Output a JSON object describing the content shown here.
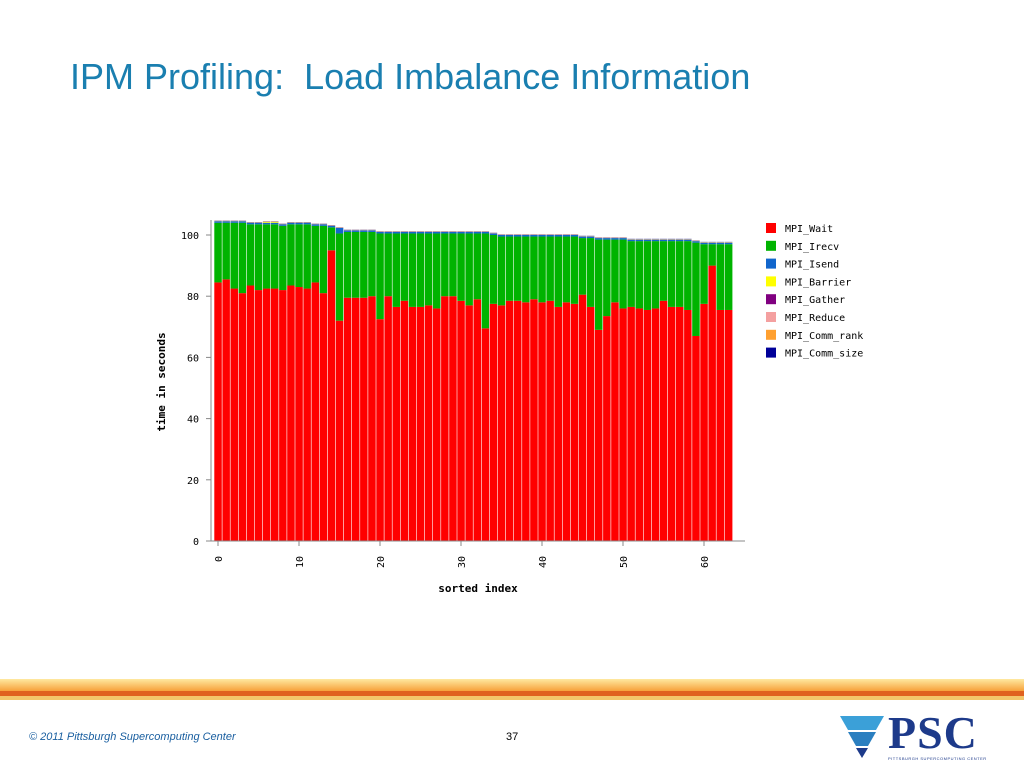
{
  "slide": {
    "title": "IPM Profiling:  Load Imbalance Information",
    "footer_copyright": "© 2011 Pittsburgh Supercomputing Center",
    "page_number": "37",
    "logo_text": "PSC",
    "logo_subtext": "PITTSBURGH SUPERCOMPUTING CENTER"
  },
  "chart_data": {
    "type": "bar",
    "stacked": true,
    "xlabel": "sorted index",
    "ylabel": "time in seconds",
    "ylim": [
      0,
      105
    ],
    "yticks": [
      0,
      20,
      40,
      60,
      80,
      100
    ],
    "xticks": [
      0,
      10,
      20,
      30,
      40,
      50,
      60
    ],
    "grid": false,
    "legend_position": "right",
    "legend": [
      {
        "name": "MPI_Wait",
        "color": "#ff0000"
      },
      {
        "name": "MPI_Irecv",
        "color": "#00b300"
      },
      {
        "name": "MPI_Isend",
        "color": "#1166cc"
      },
      {
        "name": "MPI_Barrier",
        "color": "#ffff00"
      },
      {
        "name": "MPI_Gather",
        "color": "#800080"
      },
      {
        "name": "MPI_Reduce",
        "color": "#f4a0a0"
      },
      {
        "name": "MPI_Comm_rank",
        "color": "#ffa030"
      },
      {
        "name": "MPI_Comm_size",
        "color": "#000099"
      }
    ],
    "x": [
      0,
      1,
      2,
      3,
      4,
      5,
      6,
      7,
      8,
      9,
      10,
      11,
      12,
      13,
      14,
      15,
      16,
      17,
      18,
      19,
      20,
      21,
      22,
      23,
      24,
      25,
      26,
      27,
      28,
      29,
      30,
      31,
      32,
      33,
      34,
      35,
      36,
      37,
      38,
      39,
      40,
      41,
      42,
      43,
      44,
      45,
      46,
      47,
      48,
      49,
      50,
      51,
      52,
      53,
      54,
      55,
      56,
      57,
      58,
      59,
      60,
      61,
      62,
      63
    ],
    "series": [
      {
        "name": "MPI_Wait",
        "color": "#ff0000",
        "values": [
          84.5,
          85.5,
          82.5,
          81,
          83.5,
          82,
          82.5,
          82.5,
          82,
          83.5,
          83,
          82.5,
          84.5,
          81,
          95,
          72,
          79.5,
          79.5,
          79.5,
          80,
          72.5,
          80,
          76.5,
          78.5,
          76.5,
          76.5,
          77,
          76,
          80,
          80,
          78.5,
          77,
          79,
          69.5,
          77.5,
          77,
          78.5,
          78.5,
          78,
          79,
          78,
          78.5,
          76.5,
          78,
          77.5,
          80.5,
          76.5,
          69,
          73.5,
          78,
          76,
          76.5,
          76,
          75.5,
          76,
          78.5,
          76.5,
          76.5,
          75.5,
          67,
          77.5,
          90,
          75.5,
          75.5
        ]
      },
      {
        "name": "MPI_Irecv",
        "color": "#00b300",
        "values": [
          19.5,
          18.5,
          21.5,
          23,
          20,
          21.5,
          21,
          21,
          21,
          20,
          20.5,
          21,
          18.5,
          22,
          7.5,
          28.5,
          21.5,
          21.5,
          21.5,
          21,
          28,
          20.5,
          24,
          22,
          24,
          24,
          23.5,
          24.5,
          20.5,
          20.5,
          22,
          23.5,
          21.5,
          31,
          22.5,
          22.5,
          21,
          21,
          21.5,
          20.5,
          21.5,
          21,
          23,
          21.5,
          22,
          18.5,
          22.5,
          29.5,
          25,
          20.5,
          22.5,
          21.5,
          22,
          22.5,
          22,
          19.5,
          21.5,
          21.5,
          22.5,
          30.5,
          19.5,
          7,
          21.5,
          21.5
        ]
      },
      {
        "name": "MPI_Isend",
        "color": "#1166cc",
        "values": [
          0.5,
          0.5,
          0.5,
          0.5,
          0.5,
          0.5,
          0.5,
          0.5,
          0.5,
          0.5,
          0.5,
          0.5,
          0.5,
          0.5,
          0.5,
          1.8,
          0.5,
          0.5,
          0.5,
          0.5,
          0.5,
          0.5,
          0.5,
          0.5,
          0.5,
          0.5,
          0.5,
          0.5,
          0.5,
          0.5,
          0.5,
          0.5,
          0.5,
          0.5,
          0.5,
          0.5,
          0.5,
          0.5,
          0.5,
          0.5,
          0.5,
          0.5,
          0.5,
          0.5,
          0.5,
          0.5,
          0.5,
          0.5,
          0.5,
          0.5,
          0.5,
          0.5,
          0.5,
          0.5,
          0.5,
          0.5,
          0.5,
          0.5,
          0.5,
          0.5,
          0.5,
          0.5,
          0.5,
          0.5
        ]
      },
      {
        "name": "MPI_Barrier",
        "color": "#ffff00",
        "values": [
          0.05,
          0.05,
          0.05,
          0.05,
          0.05,
          0.05,
          0.3,
          0.3,
          0.05,
          0.05,
          0.05,
          0.05,
          0.05,
          0.05,
          0.05,
          0.05,
          0.05,
          0.05,
          0.05,
          0.05,
          0.05,
          0.05,
          0.05,
          0.05,
          0.05,
          0.05,
          0.05,
          0.05,
          0.05,
          0.05,
          0.05,
          0.05,
          0.05,
          0.05,
          0.05,
          0.05,
          0.05,
          0.05,
          0.05,
          0.05,
          0.05,
          0.05,
          0.05,
          0.05,
          0.05,
          0.05,
          0.05,
          0.05,
          0.05,
          0.05,
          0.05,
          0.05,
          0.05,
          0.05,
          0.05,
          0.05,
          0.05,
          0.05,
          0.05,
          0.05,
          0.05,
          0.05,
          0.05,
          0.05
        ]
      },
      {
        "name": "MPI_Gather",
        "color": "#800080",
        "values": [
          0.05,
          0.05,
          0.05,
          0.05,
          0.05,
          0.05,
          0.05,
          0.05,
          0.05,
          0.05,
          0.05,
          0.05,
          0.05,
          0.05,
          0.05,
          0.05,
          0.05,
          0.05,
          0.05,
          0.05,
          0.05,
          0.05,
          0.05,
          0.05,
          0.05,
          0.05,
          0.05,
          0.05,
          0.05,
          0.05,
          0.05,
          0.05,
          0.05,
          0.05,
          0.05,
          0.05,
          0.05,
          0.05,
          0.05,
          0.05,
          0.05,
          0.05,
          0.05,
          0.05,
          0.05,
          0.05,
          0.05,
          0.05,
          0.05,
          0.05,
          0.05,
          0.05,
          0.05,
          0.05,
          0.05,
          0.05,
          0.05,
          0.05,
          0.05,
          0.05,
          0.05,
          0.05,
          0.05,
          0.05
        ]
      },
      {
        "name": "MPI_Reduce",
        "color": "#f4a0a0",
        "values": [
          0.05,
          0.05,
          0.05,
          0.05,
          0.05,
          0.05,
          0.05,
          0.05,
          0.05,
          0.05,
          0.05,
          0.05,
          0.05,
          0.05,
          0.05,
          0.05,
          0.05,
          0.05,
          0.05,
          0.05,
          0.05,
          0.05,
          0.05,
          0.05,
          0.05,
          0.05,
          0.05,
          0.05,
          0.05,
          0.05,
          0.05,
          0.05,
          0.05,
          0.05,
          0.05,
          0.05,
          0.05,
          0.05,
          0.05,
          0.05,
          0.05,
          0.05,
          0.05,
          0.05,
          0.05,
          0.05,
          0.05,
          0.05,
          0.05,
          0.05,
          0.05,
          0.05,
          0.05,
          0.05,
          0.05,
          0.05,
          0.05,
          0.05,
          0.05,
          0.05,
          0.05,
          0.05,
          0.05,
          0.05
        ]
      },
      {
        "name": "MPI_Comm_rank",
        "color": "#ffa030",
        "values": [
          0.05,
          0.05,
          0.05,
          0.05,
          0.05,
          0.05,
          0.05,
          0.05,
          0.05,
          0.05,
          0.05,
          0.05,
          0.05,
          0.05,
          0.05,
          0.05,
          0.05,
          0.05,
          0.05,
          0.05,
          0.05,
          0.05,
          0.05,
          0.05,
          0.05,
          0.05,
          0.05,
          0.05,
          0.05,
          0.05,
          0.05,
          0.05,
          0.05,
          0.05,
          0.05,
          0.05,
          0.05,
          0.05,
          0.05,
          0.05,
          0.05,
          0.05,
          0.05,
          0.05,
          0.05,
          0.05,
          0.05,
          0.05,
          0.05,
          0.05,
          0.05,
          0.05,
          0.05,
          0.05,
          0.05,
          0.05,
          0.05,
          0.05,
          0.05,
          0.05,
          0.05,
          0.05,
          0.05,
          0.05
        ]
      },
      {
        "name": "MPI_Comm_size",
        "color": "#000099",
        "values": [
          0.05,
          0.05,
          0.05,
          0.05,
          0.05,
          0.05,
          0.05,
          0.05,
          0.05,
          0.05,
          0.05,
          0.05,
          0.05,
          0.05,
          0.05,
          0.05,
          0.05,
          0.05,
          0.05,
          0.05,
          0.05,
          0.05,
          0.05,
          0.05,
          0.05,
          0.05,
          0.05,
          0.05,
          0.05,
          0.05,
          0.05,
          0.05,
          0.05,
          0.05,
          0.05,
          0.05,
          0.05,
          0.05,
          0.05,
          0.05,
          0.05,
          0.05,
          0.05,
          0.05,
          0.05,
          0.05,
          0.05,
          0.05,
          0.05,
          0.05,
          0.05,
          0.05,
          0.05,
          0.05,
          0.05,
          0.05,
          0.05,
          0.05,
          0.05,
          0.05,
          0.05,
          0.05,
          0.05,
          0.05
        ]
      }
    ]
  }
}
